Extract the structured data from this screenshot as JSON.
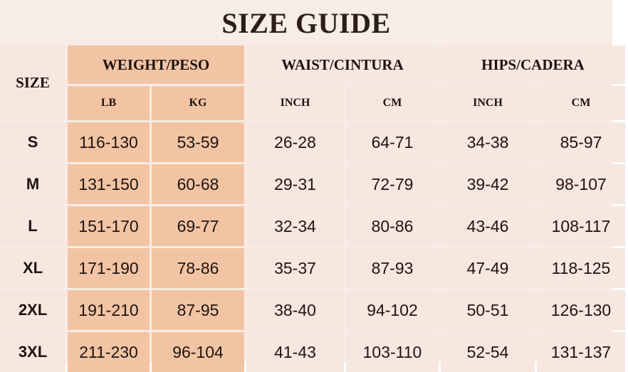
{
  "title": "SIZE GUIDE",
  "headers": {
    "size": "SIZE",
    "weight": "WEIGHT/PESO",
    "waist": "WAIST/CINTURA",
    "hips": "HIPS/CADERA"
  },
  "subheaders": {
    "weight_lb": "LB",
    "weight_kg": "KG",
    "waist_inch": "INCH",
    "waist_cm": "CM",
    "hips_inch": "INCH",
    "hips_cm": "CM"
  },
  "rows": [
    {
      "size": "S",
      "lb": "116-130",
      "kg": "53-59",
      "waist_inch": "26-28",
      "waist_cm": "64-71",
      "hips_inch": "34-38",
      "hips_cm": "85-97"
    },
    {
      "size": "M",
      "lb": "131-150",
      "kg": "60-68",
      "waist_inch": "29-31",
      "waist_cm": "72-79",
      "hips_inch": "39-42",
      "hips_cm": "98-107"
    },
    {
      "size": "L",
      "lb": "151-170",
      "kg": "69-77",
      "waist_inch": "32-34",
      "waist_cm": "80-86",
      "hips_inch": "43-46",
      "hips_cm": "108-117"
    },
    {
      "size": "XL",
      "lb": "171-190",
      "kg": "78-86",
      "waist_inch": "35-37",
      "waist_cm": "87-93",
      "hips_inch": "47-49",
      "hips_cm": "118-125"
    },
    {
      "size": "2XL",
      "lb": "191-210",
      "kg": "87-95",
      "waist_inch": "38-40",
      "waist_cm": "94-102",
      "hips_inch": "50-51",
      "hips_cm": "126-130"
    },
    {
      "size": "3XL",
      "lb": "211-230",
      "kg": "96-104",
      "waist_inch": "41-43",
      "waist_cm": "103-110",
      "hips_inch": "52-54",
      "hips_cm": "131-137"
    }
  ],
  "colors": {
    "panel_background": "#f8ece6",
    "cell_background": "#f6e7df",
    "weight_highlight": "#f2c4a4",
    "text": "#1e1410"
  }
}
